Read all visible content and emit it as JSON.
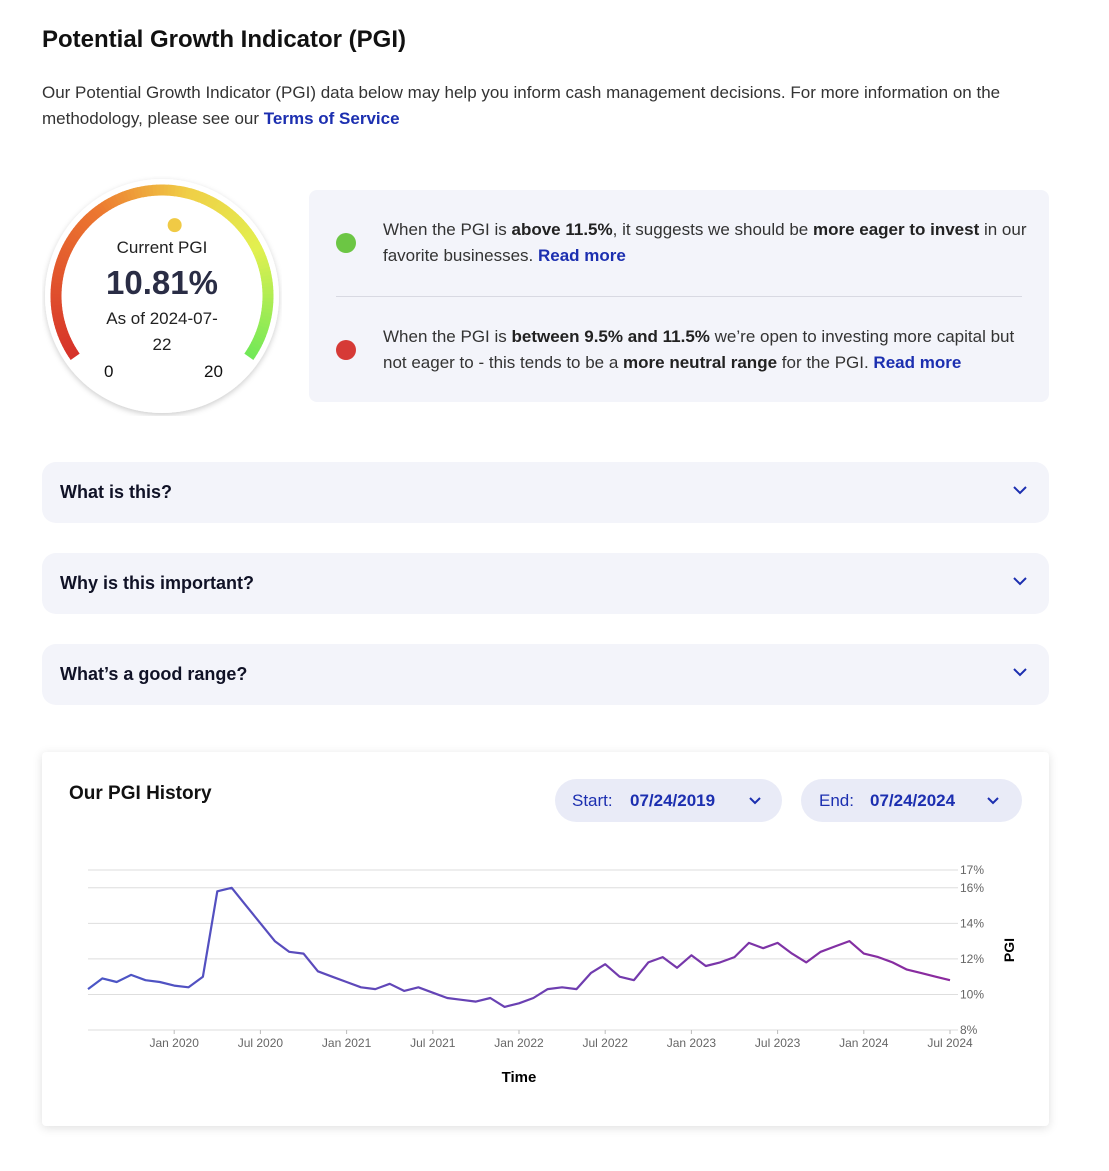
{
  "header": {
    "title": "Potential Growth Indicator (PGI)",
    "intro": "Our Potential Growth Indicator (PGI) data below may help you inform cash management decisions. For more information on the methodology, please see our ",
    "link": "Terms of Service"
  },
  "gauge": {
    "label": "Current PGI",
    "value": 10.81,
    "value_label": "10.81%",
    "date": "As of 2024-07-22",
    "min": 0,
    "max": 20
  },
  "info": {
    "items": [
      {
        "color": "#6cc644",
        "parts": [
          {
            "text": "When the PGI is "
          },
          {
            "text": "above 11.5%",
            "bold": true
          },
          {
            "text": ", it suggests we should be "
          },
          {
            "text": "more eager to invest",
            "bold": true
          },
          {
            "text": " in our favorite businesses. "
          },
          {
            "text": "Read more",
            "link": true
          }
        ]
      },
      {
        "color": "#d63a36",
        "parts": [
          {
            "text": "When the PGI is "
          },
          {
            "text": "between 9.5% and 11.5%",
            "bold": true
          },
          {
            "text": " we’re open to investing more capital but not eager to - this tends to be a "
          },
          {
            "text": "more neutral range",
            "bold": true
          },
          {
            "text": " for the PGI. "
          },
          {
            "text": "Read more",
            "link": true
          }
        ]
      }
    ]
  },
  "accordion": [
    "What is this?",
    "Why is this important?",
    "What’s a good range?"
  ],
  "history": {
    "start_label": "Start:",
    "start": "07/24/2019",
    "end_label": "End:",
    "end": "07/24/2024"
  },
  "chart_data": {
    "type": "line",
    "title": "Our PGI History",
    "x_label": "Time",
    "y_label": "PGI",
    "gradient": [
      "#4a56c6",
      "#8b2a9e"
    ],
    "x": [
      "2019-07",
      "2019-08",
      "2019-09",
      "2019-10",
      "2019-11",
      "2019-12",
      "2020-01",
      "2020-02",
      "2020-03",
      "2020-04",
      "2020-05",
      "2020-06",
      "2020-07",
      "2020-08",
      "2020-09",
      "2020-10",
      "2020-11",
      "2020-12",
      "2021-01",
      "2021-02",
      "2021-03",
      "2021-04",
      "2021-05",
      "2021-06",
      "2021-07",
      "2021-08",
      "2021-09",
      "2021-10",
      "2021-11",
      "2021-12",
      "2022-01",
      "2022-02",
      "2022-03",
      "2022-04",
      "2022-05",
      "2022-06",
      "2022-07",
      "2022-08",
      "2022-09",
      "2022-10",
      "2022-11",
      "2022-12",
      "2023-01",
      "2023-02",
      "2023-03",
      "2023-04",
      "2023-05",
      "2023-06",
      "2023-07",
      "2023-08",
      "2023-09",
      "2023-10",
      "2023-11",
      "2023-12",
      "2024-01",
      "2024-02",
      "2024-03",
      "2024-04",
      "2024-05",
      "2024-06",
      "2024-07"
    ],
    "values": [
      10.3,
      10.9,
      10.7,
      11.1,
      10.8,
      10.7,
      10.5,
      10.4,
      11.0,
      15.8,
      16.0,
      15.0,
      14.0,
      13.0,
      12.4,
      12.3,
      11.3,
      11.0,
      10.7,
      10.4,
      10.3,
      10.6,
      10.2,
      10.4,
      10.1,
      9.8,
      9.7,
      9.6,
      9.8,
      9.3,
      9.5,
      9.8,
      10.3,
      10.4,
      10.3,
      11.2,
      11.7,
      11.0,
      10.8,
      11.8,
      12.1,
      11.5,
      12.2,
      11.6,
      11.8,
      12.1,
      12.9,
      12.6,
      12.9,
      12.3,
      11.8,
      12.4,
      12.7,
      13.0,
      12.3,
      12.1,
      11.8,
      11.4,
      11.2,
      11.0,
      10.8
    ],
    "xlim": [
      "2019-07",
      "2024-07"
    ],
    "xticks": [
      {
        "value": "2020-01",
        "label": "Jan 2020"
      },
      {
        "value": "2020-07",
        "label": "Jul 2020"
      },
      {
        "value": "2021-01",
        "label": "Jan 2021"
      },
      {
        "value": "2021-07",
        "label": "Jul 2021"
      },
      {
        "value": "2022-01",
        "label": "Jan 2022"
      },
      {
        "value": "2022-07",
        "label": "Jul 2022"
      },
      {
        "value": "2023-01",
        "label": "Jan 2023"
      },
      {
        "value": "2023-07",
        "label": "Jul 2023"
      },
      {
        "value": "2024-01",
        "label": "Jan 2024"
      },
      {
        "value": "2024-07",
        "label": "Jul 2024"
      }
    ],
    "ylim": [
      8,
      17
    ],
    "yticks": [
      {
        "value": 8,
        "label": "8%"
      },
      {
        "value": 10,
        "label": "10%"
      },
      {
        "value": 12,
        "label": "12%"
      },
      {
        "value": 14,
        "label": "14%"
      },
      {
        "value": 16,
        "label": "16%"
      },
      {
        "value": 17,
        "label": "17%"
      }
    ],
    "grid": true
  }
}
